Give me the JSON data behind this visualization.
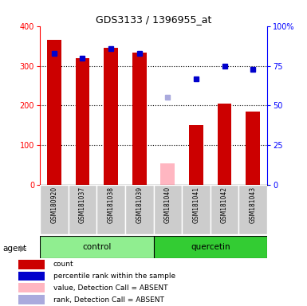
{
  "title": "GDS3133 / 1396955_at",
  "samples": [
    "GSM180920",
    "GSM181037",
    "GSM181038",
    "GSM181039",
    "GSM181040",
    "GSM181041",
    "GSM181042",
    "GSM181043"
  ],
  "groups": [
    "control",
    "control",
    "control",
    "control",
    "quercetin",
    "quercetin",
    "quercetin",
    "quercetin"
  ],
  "count_values": [
    365,
    320,
    345,
    333,
    null,
    150,
    205,
    185
  ],
  "count_absent_values": [
    null,
    null,
    null,
    null,
    55,
    null,
    null,
    null
  ],
  "rank_values": [
    83,
    80,
    86,
    83,
    null,
    67,
    75,
    73
  ],
  "rank_absent_values": [
    null,
    null,
    null,
    null,
    55,
    null,
    null,
    null
  ],
  "ylim_left": [
    0,
    400
  ],
  "ylim_right": [
    0,
    100
  ],
  "left_ticks": [
    0,
    100,
    200,
    300,
    400
  ],
  "right_tick_labels": [
    "0",
    "25",
    "50",
    "75",
    "100%"
  ],
  "control_color_light": "#AAFFAA",
  "control_color": "#90EE90",
  "quercetin_color": "#33CC33",
  "bar_color": "#CC0000",
  "bar_absent_color": "#FFB6C1",
  "dot_color": "#0000CC",
  "dot_absent_color": "#AAAADD",
  "xlabel_area_color": "#CCCCCC",
  "legend_items": [
    {
      "label": "count",
      "color": "#CC0000"
    },
    {
      "label": "percentile rank within the sample",
      "color": "#0000CC"
    },
    {
      "label": "value, Detection Call = ABSENT",
      "color": "#FFB6C1"
    },
    {
      "label": "rank, Detection Call = ABSENT",
      "color": "#AAAADD"
    }
  ]
}
